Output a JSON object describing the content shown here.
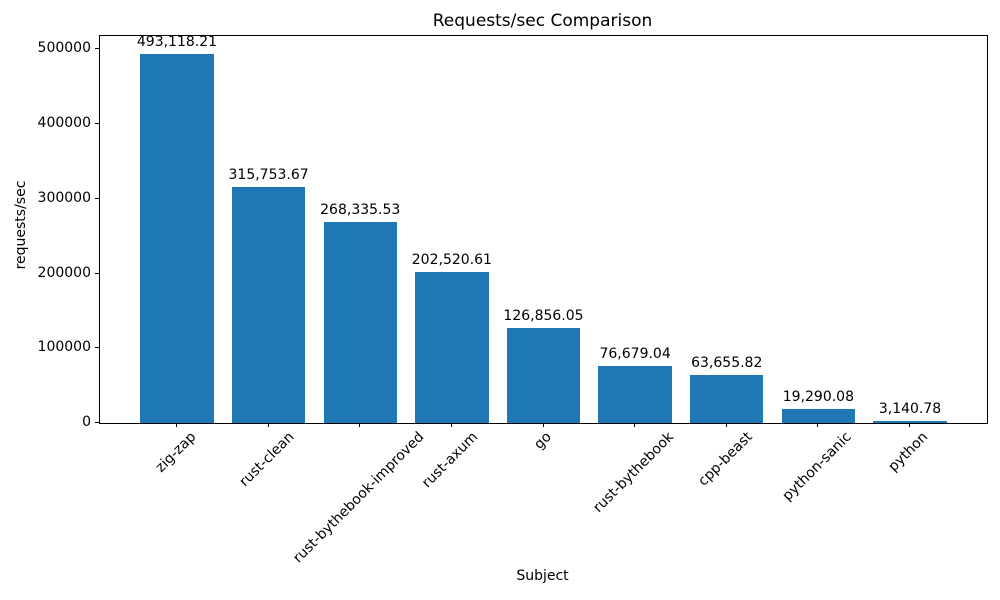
{
  "chart_data": {
    "type": "bar",
    "title": "Requests/sec Comparison",
    "xlabel": "Subject",
    "ylabel": "requests/sec",
    "categories": [
      "zig-zap",
      "rust-clean",
      "rust-bythebook-improved",
      "rust-axum",
      "go",
      "rust-bythebook",
      "cpp-beast",
      "python-sanic",
      "python"
    ],
    "values": [
      493118.21,
      315753.67,
      268335.53,
      202520.61,
      126856.05,
      76679.04,
      63655.82,
      19290.08,
      3140.78
    ],
    "value_labels": [
      "493,118.21",
      "315,753.67",
      "268,335.53",
      "202,520.61",
      "126,856.05",
      "76,679.04",
      "63,655.82",
      "19,290.08",
      "3,140.78"
    ],
    "yticks": [
      0,
      100000,
      200000,
      300000,
      400000,
      500000
    ],
    "ytick_labels": [
      "0",
      "100000",
      "200000",
      "300000",
      "400000",
      "500000"
    ],
    "ylim": [
      0,
      517774
    ],
    "bar_color": "#1f77b4",
    "grid": false,
    "legend_position": "none"
  }
}
